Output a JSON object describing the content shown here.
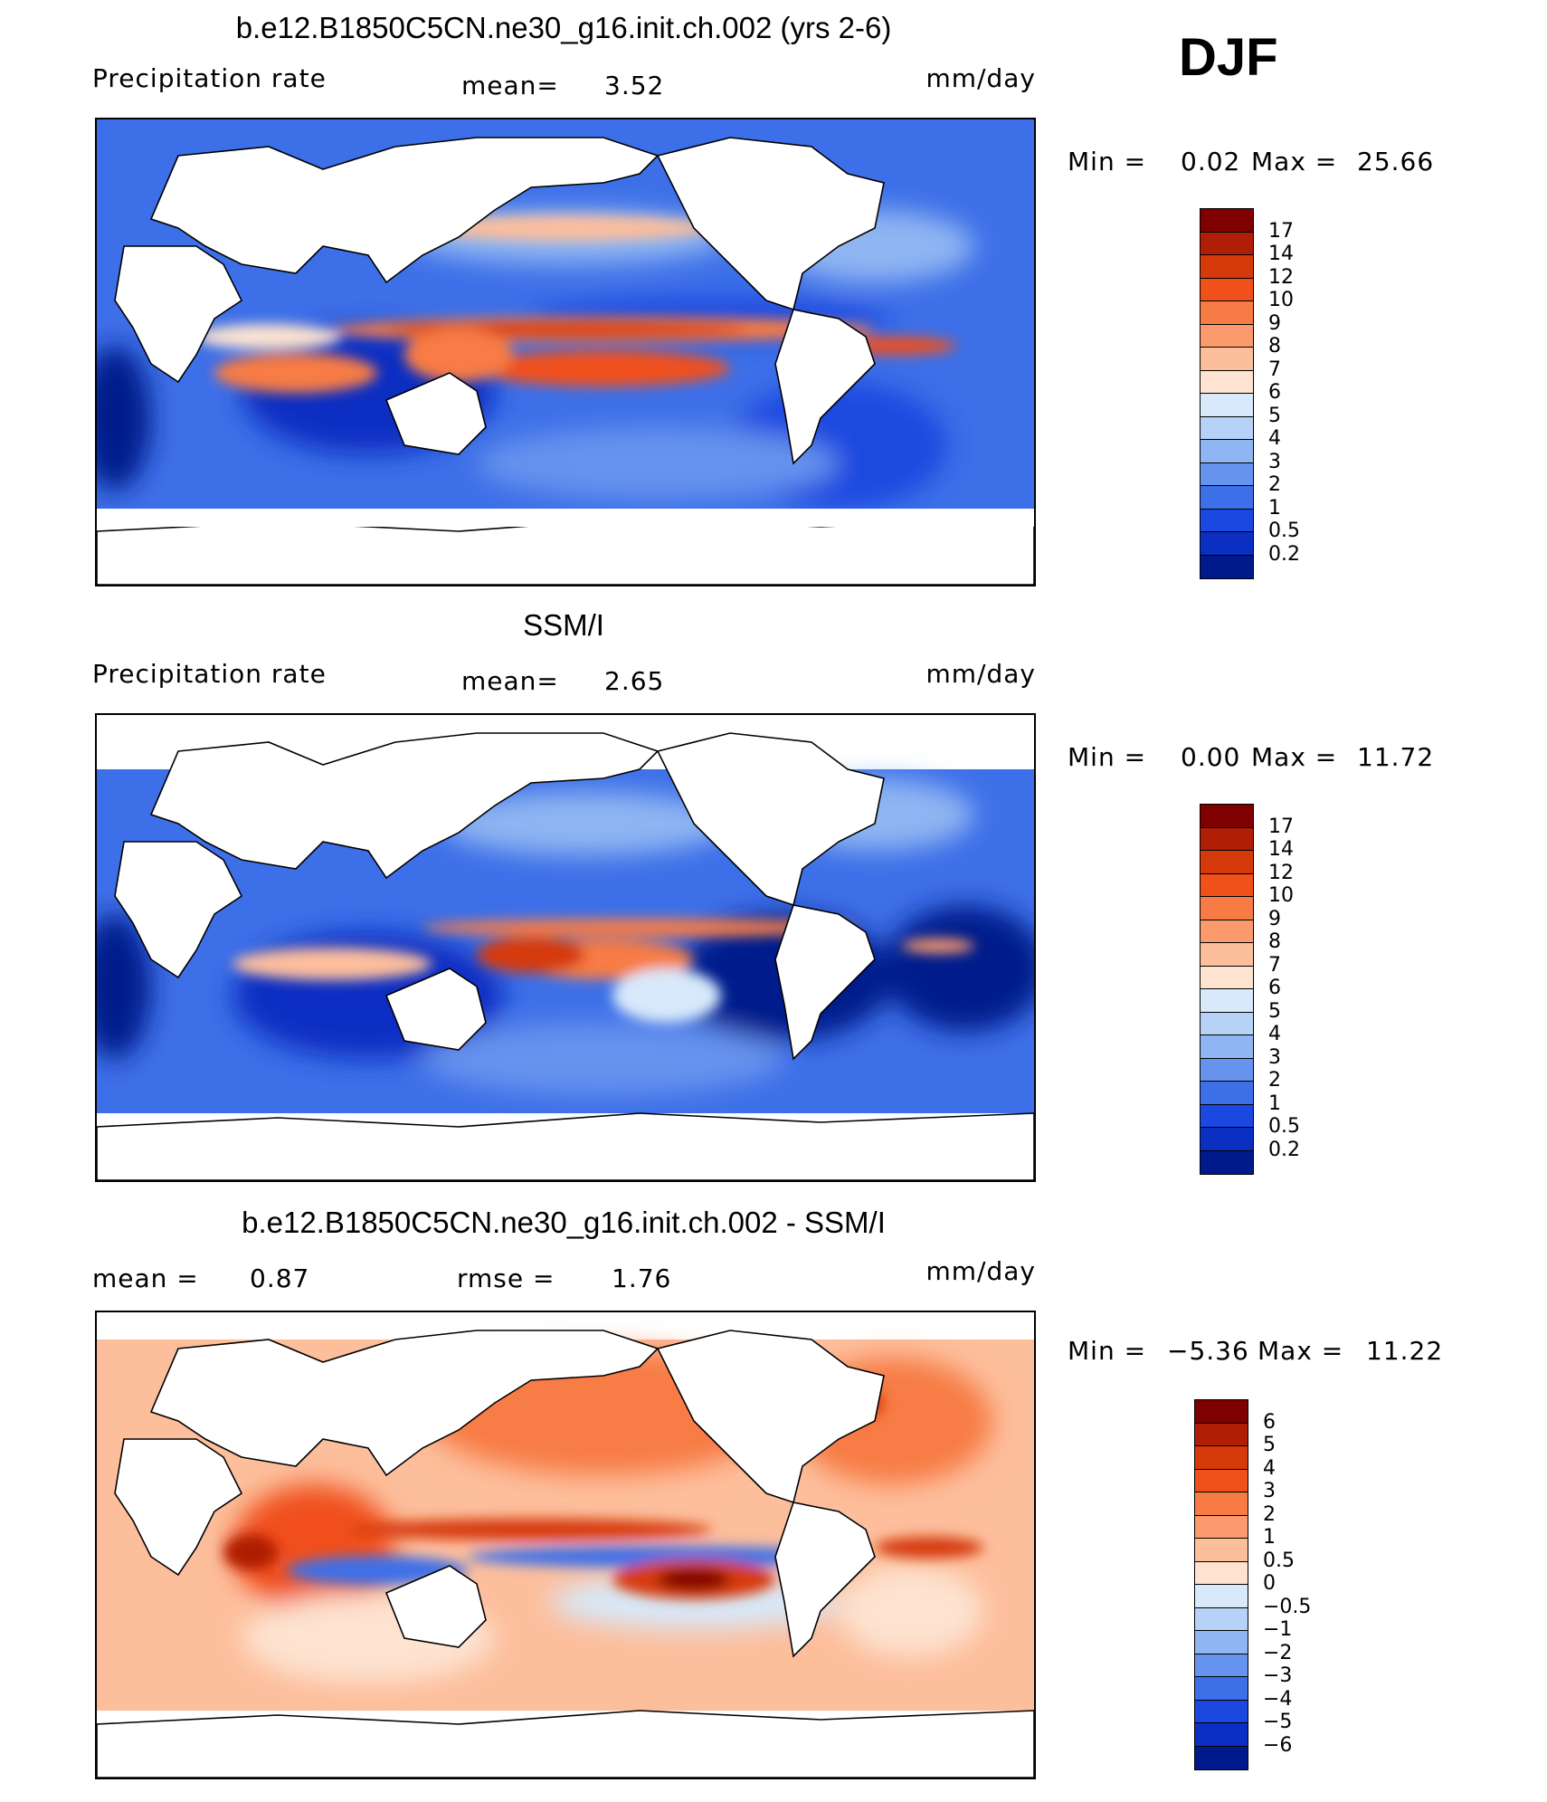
{
  "season": "DJF",
  "panels": [
    {
      "id": "model",
      "title": "b.e12.B1850C5CN.ne30_g16.init.ch.002 (yrs 2-6)",
      "left_label": "Precipitation  rate",
      "mid_label": "mean=",
      "mid_value": "3.52",
      "units": "mm/day",
      "min_label": "Min  =",
      "min_value": "0.02",
      "max_label": "Max  =",
      "max_value": "25.66",
      "scale": "precip"
    },
    {
      "id": "obs",
      "title": "SSM/I",
      "left_label": "Precipitation  rate",
      "mid_label": "mean=",
      "mid_value": "2.65",
      "units": "mm/day",
      "min_label": "Min  =",
      "min_value": "0.00",
      "max_label": "Max  =",
      "max_value": "11.72",
      "scale": "precip"
    },
    {
      "id": "diff",
      "title": "b.e12.B1850C5CN.ne30_g16.init.ch.002 - SSM/I",
      "left_label": "mean  =",
      "left_value": "0.87",
      "mid_label": "rmse  =",
      "mid_value": "1.76",
      "units": "mm/day",
      "min_label": "Min  =",
      "min_value": "−5.36",
      "max_label": "Max  =",
      "max_value": "11.22",
      "scale": "diff"
    }
  ],
  "colorbars": {
    "precip": {
      "labels": [
        "17",
        "14",
        "12",
        "10",
        "9",
        "8",
        "7",
        "6",
        "5",
        "4",
        "3",
        "2",
        "1",
        "0.5",
        "0.2"
      ],
      "colors": [
        "#7f0000",
        "#b01e05",
        "#d63a0a",
        "#f0501a",
        "#f77b45",
        "#fb9a6c",
        "#fdbe9c",
        "#fde3d0",
        "#d7e9fb",
        "#b6d3f7",
        "#8fb6f2",
        "#6693ee",
        "#3d6fe8",
        "#1a48e0",
        "#0a2fc2",
        "#001a8c"
      ]
    },
    "diff": {
      "labels": [
        "6",
        "5",
        "4",
        "3",
        "2",
        "1",
        "0.5",
        "0",
        "−0.5",
        "−1",
        "−2",
        "−3",
        "−4",
        "−5",
        "−6"
      ],
      "colors": [
        "#7f0000",
        "#b01e05",
        "#d63a0a",
        "#f0501a",
        "#f77b45",
        "#fb9a6c",
        "#fdbe9c",
        "#fde3d0",
        "#d7e9fb",
        "#b6d3f7",
        "#8fb6f2",
        "#6693ee",
        "#3d6fe8",
        "#1a48e0",
        "#0a2fc2",
        "#001a8c"
      ]
    }
  },
  "chart_data": [
    {
      "type": "heatmap",
      "title": "b.e12.B1850C5CN.ne30_g16.init.ch.002 (yrs 2-6)",
      "variable": "Precipitation  rate",
      "units": "mm/day",
      "mean": 3.52,
      "min": 0.02,
      "max": 25.66,
      "levels": [
        0.2,
        0.5,
        1,
        2,
        3,
        4,
        5,
        6,
        7,
        8,
        9,
        10,
        12,
        14,
        17
      ]
    },
    {
      "type": "heatmap",
      "title": "SSM/I",
      "variable": "Precipitation  rate",
      "units": "mm/day",
      "mean": 2.65,
      "min": 0.0,
      "max": 11.72,
      "levels": [
        0.2,
        0.5,
        1,
        2,
        3,
        4,
        5,
        6,
        7,
        8,
        9,
        10,
        12,
        14,
        17
      ]
    },
    {
      "type": "heatmap",
      "title": "b.e12.B1850C5CN.ne30_g16.init.ch.002 - SSM/I",
      "units": "mm/day",
      "mean": 0.87,
      "rmse": 1.76,
      "min": -5.36,
      "max": 11.22,
      "levels": [
        -6,
        -5,
        -4,
        -3,
        -2,
        -1,
        -0.5,
        0,
        0.5,
        1,
        2,
        3,
        4,
        5,
        6
      ]
    }
  ]
}
